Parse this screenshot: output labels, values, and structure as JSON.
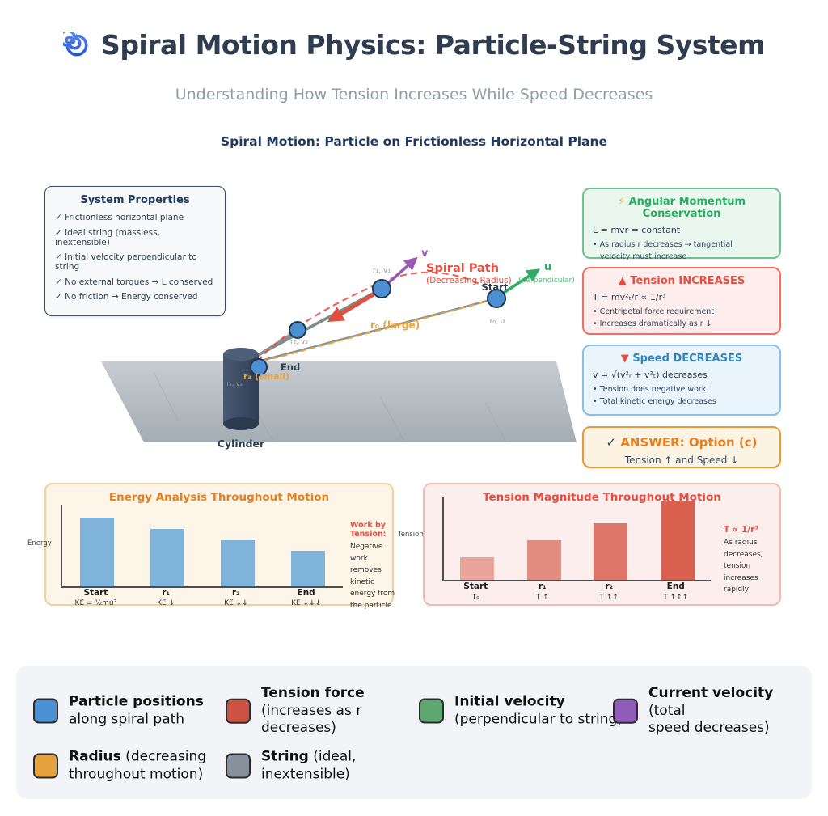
{
  "header": {
    "title": "Spiral Motion Physics: Particle-String System",
    "subtitle": "Understanding How Tension Increases While Speed Decreases"
  },
  "diagram": {
    "title": "Spiral Motion: Particle on Frictionless Horizontal Plane",
    "system_properties": {
      "title": "System Properties",
      "items": [
        "✓ Frictionless horizontal plane",
        "✓ Ideal string (massless, inextensible)",
        "✓ Initial velocity perpendicular to string",
        "✓ No external torques → L conserved",
        "✓ No friction → Energy conserved"
      ]
    },
    "labels": {
      "start": "Start",
      "end": "End",
      "cylinder": "Cylinder",
      "spiral_path": "Spiral Path",
      "spiral_path_sub": "(Decreasing Radius)",
      "v": "v",
      "u": "u",
      "u_sub": "(perpendicular)",
      "r0_u": "r₀, u",
      "r1_v1": "r₁, v₁",
      "r2_v2": "r₂, v₂",
      "r3_v3": "r₃, v₃",
      "r0_large": "r₀ (large)",
      "r3_small": "r₃ (small)"
    },
    "info_boxes": [
      {
        "icon": "⚡",
        "title": "Angular Momentum Conservation",
        "formula": "L = mvr = constant",
        "bullets": [
          "• As radius r decreases → tangential",
          "velocity must increase"
        ],
        "accent_color": "#27ae60"
      },
      {
        "icon": "▲",
        "title": "Tension INCREASES",
        "formula": "T = mv²ₜ/r ∝ 1/r³",
        "bullets": [
          "• Centripetal force requirement",
          "• Increases dramatically as r ↓"
        ],
        "accent_color": "#e74c3c"
      },
      {
        "icon": "▼",
        "title": "Speed DECREASES",
        "formula": "v = √(v²ᵣ + v²ₜ) decreases",
        "bullets": [
          "• Tension does negative work",
          "• Total kinetic energy decreases"
        ],
        "accent_color": "#2e86c1"
      }
    ],
    "answer_box": {
      "icon": "✓",
      "title": " ANSWER: Option (c)",
      "subtitle": "Tension ↑ and Speed ↓",
      "accent_color": "#e67e22"
    }
  },
  "chart_data": [
    {
      "id": "energy",
      "type": "bar",
      "title": "Energy Analysis Throughout Motion",
      "ylabel": "Energy",
      "xlabel": "",
      "categories": [
        "Start",
        "r₁",
        "r₂",
        "End"
      ],
      "values": [
        84,
        70,
        56,
        44
      ],
      "bar_labels": [
        "KE = ½mu²",
        "KE ↓",
        "KE ↓↓",
        "KE ↓↓↓"
      ],
      "ylim": [
        0,
        100
      ],
      "grid": false,
      "bar_color": "#7fb3d9",
      "note_title": "Work by Tension:",
      "note_lines": [
        "Negative work",
        "removes kinetic",
        "energy from",
        "the particle"
      ]
    },
    {
      "id": "tension",
      "type": "bar",
      "title": "Tension Magnitude Throughout Motion",
      "ylabel": "Tension",
      "xlabel": "",
      "categories": [
        "Start",
        "r₁",
        "r₂",
        "End"
      ],
      "values": [
        27,
        48,
        69,
        96
      ],
      "bar_labels": [
        "T₀",
        "T ↑",
        "T ↑↑",
        "T ↑↑↑"
      ],
      "ylim": [
        0,
        100
      ],
      "grid": false,
      "bar_colors": [
        "#e9a59c",
        "#e28b7f",
        "#dd7568",
        "#d95f4e"
      ],
      "note_title": "T ∝ 1/r³",
      "note_lines": [
        "As radius",
        "decreases,",
        "tension",
        "increases",
        "rapidly"
      ]
    }
  ],
  "legend": {
    "items": [
      {
        "color": "#4a90d2",
        "bold": "Particle positions",
        "rest": "",
        "line2": "along spiral path",
        "line3": ""
      },
      {
        "color": "#cc5244",
        "bold": "Tension force",
        "rest": "",
        "line2": "(increases as r",
        "line3": "decreases)"
      },
      {
        "color": "#5fa771",
        "bold": "Initial velocity",
        "rest": "",
        "line2": "(perpendicular to string)",
        "line3": ""
      },
      {
        "color": "#8f5cb8",
        "bold": "Current velocity",
        "rest": " (total",
        "line2": "speed decreases)",
        "line3": ""
      },
      {
        "color": "#e6a23c",
        "bold": "Radius",
        "rest": " (decreasing",
        "line2": "throughout motion)",
        "line3": ""
      },
      {
        "color": "#87909a",
        "bold": "String",
        "rest": " (ideal,",
        "line2": "inextensible)",
        "line3": ""
      }
    ]
  }
}
